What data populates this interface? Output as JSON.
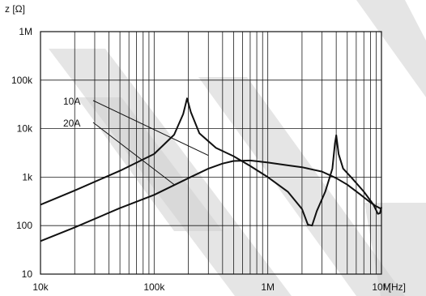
{
  "chart_data": {
    "type": "line",
    "title": "",
    "ylabel": "z [Ω]",
    "xlabel": "f [Hz]",
    "x_scale": "log",
    "y_scale": "log",
    "xlim": [
      10000,
      10000000
    ],
    "ylim": [
      10,
      1000000
    ],
    "grid": true,
    "x_ticks": [
      {
        "value": 10000,
        "label": "10k"
      },
      {
        "value": 100000,
        "label": "100k"
      },
      {
        "value": 1000000,
        "label": "1M"
      },
      {
        "value": 10000000,
        "label": "10M"
      }
    ],
    "y_ticks": [
      {
        "value": 10,
        "label": "10"
      },
      {
        "value": 100,
        "label": "100"
      },
      {
        "value": 1000,
        "label": "1k"
      },
      {
        "value": 10000,
        "label": "10k"
      },
      {
        "value": 100000,
        "label": "100k"
      },
      {
        "value": 1000000,
        "label": "1M"
      }
    ],
    "series": [
      {
        "name": "10A",
        "points": [
          [
            10000,
            270
          ],
          [
            20000,
            530
          ],
          [
            50000,
            1350
          ],
          [
            100000,
            3000
          ],
          [
            150000,
            7500
          ],
          [
            180000,
            20000
          ],
          [
            195000,
            42000
          ],
          [
            210000,
            22000
          ],
          [
            250000,
            8000
          ],
          [
            350000,
            4000
          ],
          [
            500000,
            2700
          ],
          [
            700000,
            1700
          ],
          [
            1000000,
            1000
          ],
          [
            1500000,
            500
          ],
          [
            2000000,
            220
          ],
          [
            2250000,
            105
          ],
          [
            2450000,
            100
          ],
          [
            2700000,
            200
          ],
          [
            3200000,
            500
          ],
          [
            3700000,
            1500
          ],
          [
            3900000,
            5000
          ],
          [
            4000000,
            7300
          ],
          [
            4200000,
            3000
          ],
          [
            4600000,
            1500
          ],
          [
            5500000,
            950
          ],
          [
            7000000,
            500
          ],
          [
            8500000,
            270
          ],
          [
            9300000,
            175
          ],
          [
            9700000,
            180
          ],
          [
            10000000,
            240
          ]
        ]
      },
      {
        "name": "20A",
        "points": [
          [
            10000,
            48
          ],
          [
            20000,
            92
          ],
          [
            50000,
            230
          ],
          [
            100000,
            430
          ],
          [
            200000,
            950
          ],
          [
            300000,
            1500
          ],
          [
            400000,
            1900
          ],
          [
            500000,
            2150
          ],
          [
            700000,
            2200
          ],
          [
            1000000,
            2000
          ],
          [
            1500000,
            1750
          ],
          [
            2000000,
            1600
          ],
          [
            3000000,
            1300
          ],
          [
            4000000,
            950
          ],
          [
            5000000,
            700
          ],
          [
            6500000,
            440
          ],
          [
            8000000,
            300
          ],
          [
            9000000,
            250
          ],
          [
            10000000,
            220
          ]
        ]
      }
    ],
    "annotations": [
      {
        "text": "10A",
        "series": "10A"
      },
      {
        "text": "20A",
        "series": "20A"
      }
    ]
  }
}
